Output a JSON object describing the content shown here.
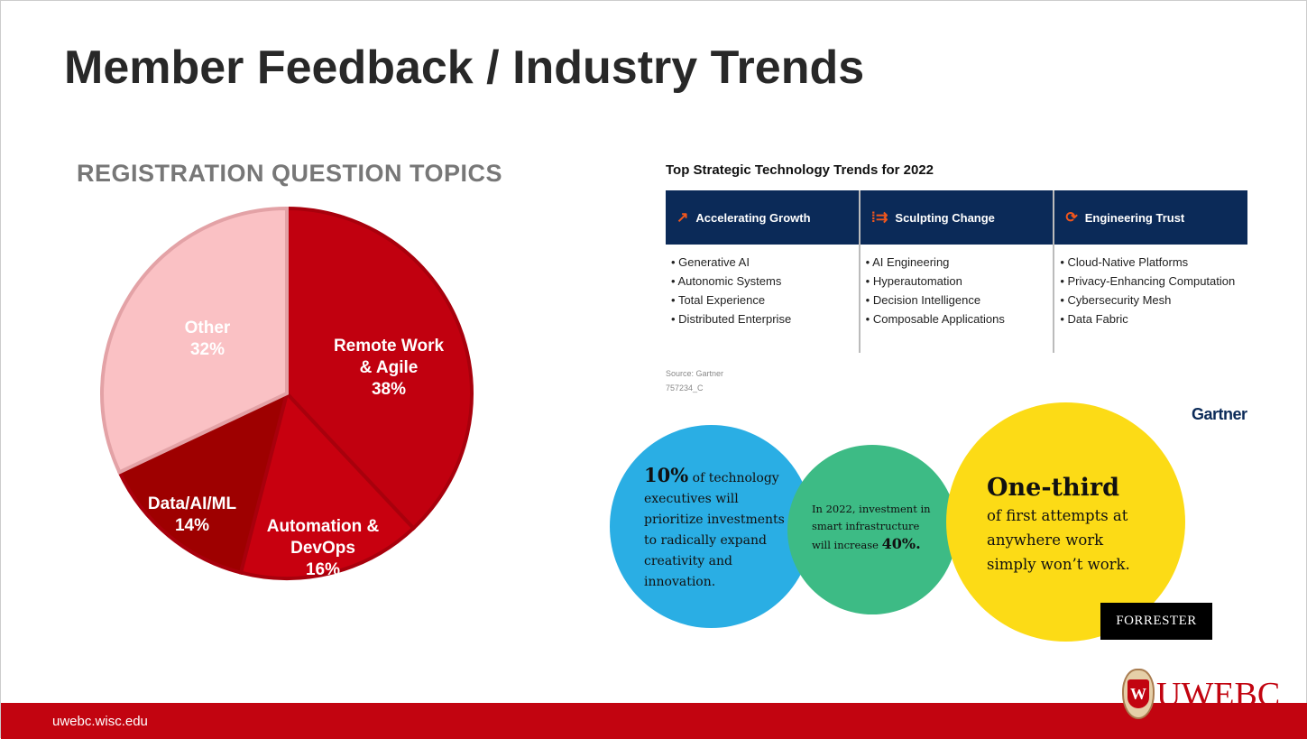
{
  "title": "Member Feedback / Industry Trends",
  "chart_data": {
    "type": "pie",
    "title": "REGISTRATION QUESTION TOPICS",
    "slices": [
      {
        "label_lines": [
          "Remote Work",
          "& Agile"
        ],
        "value": 38,
        "display": "38%",
        "color": "#c1000f"
      },
      {
        "label_lines": [
          "Automation &",
          "DevOps"
        ],
        "value": 16,
        "display": "16%",
        "color": "#c8000f"
      },
      {
        "label_lines": [
          "Data/AI/ML"
        ],
        "value": 14,
        "display": "14%",
        "color": "#9e0000"
      },
      {
        "label_lines": [
          "Other"
        ],
        "value": 32,
        "display": "32%",
        "color": "#fac1c4"
      }
    ]
  },
  "gartner": {
    "title": "Top Strategic Technology Trends for 2022",
    "columns": [
      {
        "header": "Accelerating Growth",
        "icon": "growth-chart-icon",
        "items": [
          "Generative AI",
          "Autonomic Systems",
          "Total Experience",
          "Distributed Enterprise"
        ]
      },
      {
        "header": "Sculpting Change",
        "icon": "sculpt-arrows-icon",
        "items": [
          "AI Engineering",
          "Hyperautomation",
          "Decision Intelligence",
          "Composable Applications"
        ]
      },
      {
        "header": "Engineering Trust",
        "icon": "trust-cycle-icon",
        "items": [
          "Cloud-Native Platforms",
          "Privacy-Enhancing Computation",
          "Cybersecurity Mesh",
          "Data Fabric"
        ]
      }
    ],
    "source": "Source: Gartner",
    "code": "757234_C",
    "logo": "Gartner"
  },
  "forrester": {
    "c1_big": "10%",
    "c1_text": "of technology executives will prioritize investments to radically expand creativity and innovation.",
    "c2_text": "In 2022, investment in smart infrastructure will increase",
    "c2_big": "40%.",
    "c3_big": "One-third",
    "c3_text": "of first attempts at anywhere work simply won’t work.",
    "logo": "FORRESTER"
  },
  "footer": {
    "url": "uwebc.wisc.edu",
    "logo": "UWEBC",
    "crest": "W"
  }
}
